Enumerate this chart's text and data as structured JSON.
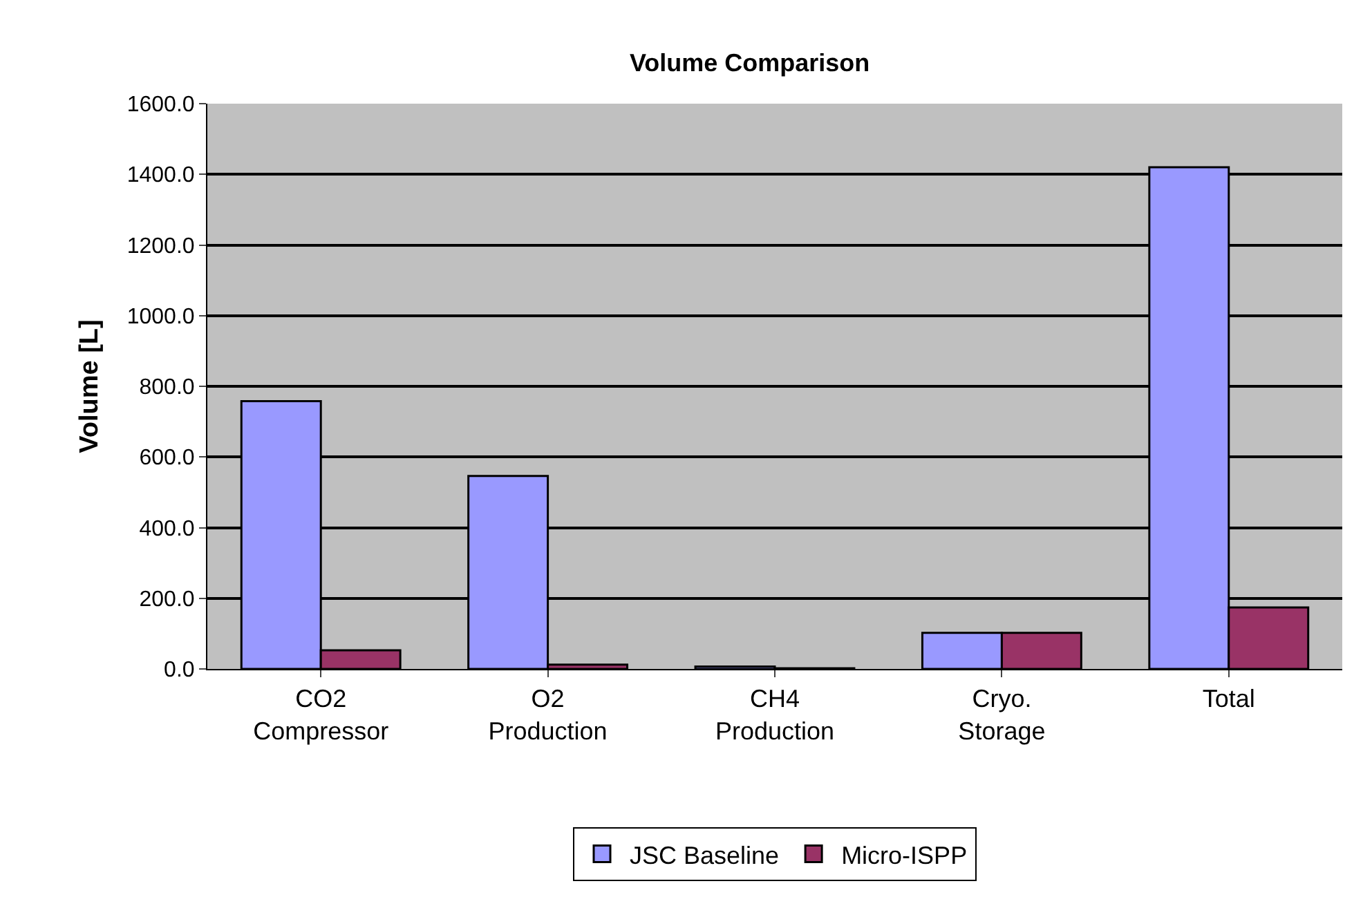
{
  "chart_data": {
    "type": "bar",
    "title": "Volume Comparison",
    "ylabel": "Volume [L]",
    "categories": [
      "CO2\nCompressor",
      "O2\nProduction",
      "CH4\nProduction",
      "Cryo.\nStorage",
      "Total"
    ],
    "series": [
      {
        "name": "JSC Baseline",
        "color": "#9999ff",
        "values": [
          758,
          546,
          7,
          102,
          1420
        ]
      },
      {
        "name": "Micro-ISPP",
        "color": "#993366",
        "values": [
          53,
          12,
          2,
          102,
          174
        ]
      }
    ],
    "ylim": [
      0,
      1600
    ],
    "yticks": [
      {
        "value": 0,
        "label": "0.0"
      },
      {
        "value": 200,
        "label": "200.0"
      },
      {
        "value": 400,
        "label": "400.0"
      },
      {
        "value": 600,
        "label": "600.0"
      },
      {
        "value": 800,
        "label": "800.0"
      },
      {
        "value": 1000,
        "label": "1000.0"
      },
      {
        "value": 1200,
        "label": "1200.0"
      },
      {
        "value": 1400,
        "label": "1400.0"
      },
      {
        "value": 1600,
        "label": "1600.0"
      }
    ],
    "grid": "y",
    "legend": "bottom"
  }
}
